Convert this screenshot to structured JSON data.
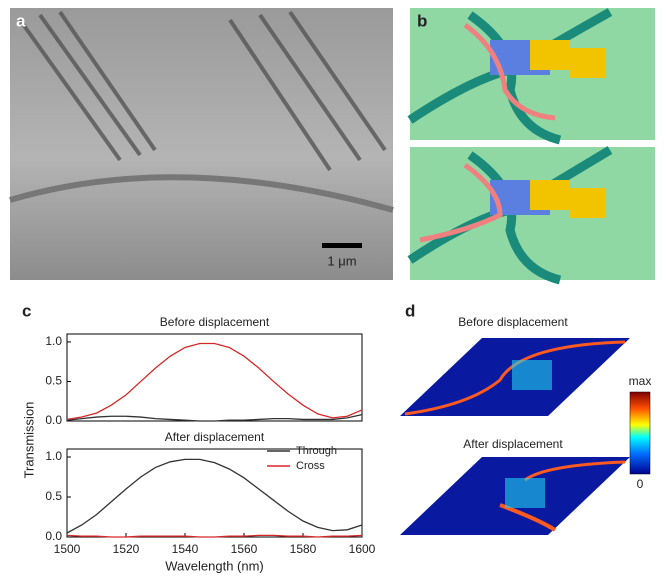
{
  "panels": {
    "a": "a",
    "b": "b",
    "c": "c",
    "d": "d"
  },
  "scale_bar": "1 μm",
  "panel_d": {
    "titles": [
      "Before displacement",
      "After displacement"
    ],
    "colorbar": {
      "max": "max",
      "min": "0"
    }
  },
  "chart_data": [
    {
      "type": "line",
      "title": "Before displacement",
      "ylabel": "Transmission",
      "x": [
        1500,
        1505,
        1510,
        1515,
        1520,
        1525,
        1530,
        1535,
        1540,
        1545,
        1550,
        1555,
        1560,
        1565,
        1570,
        1575,
        1580,
        1585,
        1590,
        1595,
        1600
      ],
      "xlim": [
        1500,
        1600
      ],
      "ylim": [
        0,
        1.1
      ],
      "yticks": [
        {
          "value": 0,
          "label": "0.0"
        },
        {
          "value": 0.5,
          "label": "0.5"
        },
        {
          "value": 1,
          "label": "1.0"
        }
      ],
      "series": [
        {
          "name": "Through",
          "color": "#333333",
          "values": [
            0.01,
            0.03,
            0.05,
            0.06,
            0.06,
            0.05,
            0.03,
            0.02,
            0.01,
            0.0,
            0.0,
            0.01,
            0.01,
            0.02,
            0.03,
            0.03,
            0.02,
            0.02,
            0.02,
            0.04,
            0.08
          ]
        },
        {
          "name": "Cross",
          "color": "#d62728",
          "values": [
            0.02,
            0.05,
            0.1,
            0.2,
            0.33,
            0.5,
            0.67,
            0.82,
            0.93,
            0.98,
            0.98,
            0.93,
            0.82,
            0.67,
            0.5,
            0.34,
            0.2,
            0.09,
            0.04,
            0.06,
            0.14
          ]
        }
      ]
    },
    {
      "type": "line",
      "title": "After displacement",
      "xlabel": "Wavelength (nm)",
      "legend": "upper right",
      "x": [
        1500,
        1505,
        1510,
        1515,
        1520,
        1525,
        1530,
        1535,
        1540,
        1545,
        1550,
        1555,
        1560,
        1565,
        1570,
        1575,
        1580,
        1585,
        1590,
        1595,
        1600
      ],
      "xlim": [
        1500,
        1600
      ],
      "xticks": [
        1500,
        1520,
        1540,
        1560,
        1580,
        1600
      ],
      "ylim": [
        0,
        1.1
      ],
      "yticks": [
        {
          "value": 0,
          "label": "0.0"
        },
        {
          "value": 0.5,
          "label": "0.5"
        },
        {
          "value": 1,
          "label": "1.0"
        }
      ],
      "series": [
        {
          "name": "Through",
          "color": "#333333",
          "values": [
            0.05,
            0.15,
            0.28,
            0.44,
            0.6,
            0.75,
            0.87,
            0.94,
            0.97,
            0.97,
            0.93,
            0.85,
            0.74,
            0.6,
            0.46,
            0.32,
            0.2,
            0.12,
            0.08,
            0.09,
            0.15
          ]
        },
        {
          "name": "Cross",
          "color": "#d62728",
          "values": [
            0.02,
            0.01,
            0.01,
            0.0,
            0.0,
            0.01,
            0.01,
            0.01,
            0.01,
            0.0,
            0.0,
            0.01,
            0.01,
            0.02,
            0.02,
            0.01,
            0.01,
            0.0,
            0.01,
            0.01,
            0.02
          ]
        }
      ]
    }
  ]
}
